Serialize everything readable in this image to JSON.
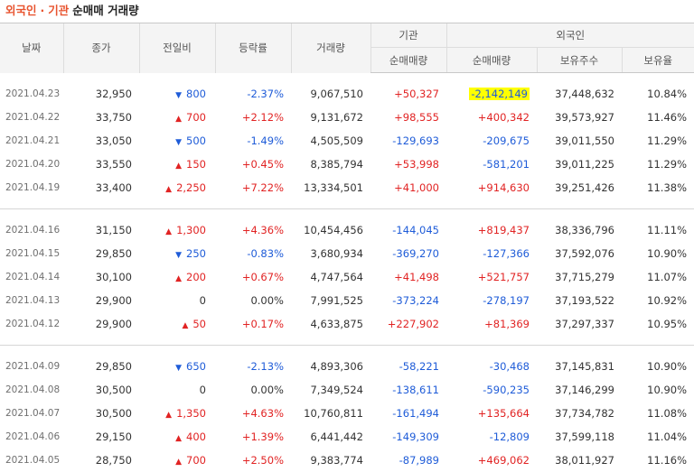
{
  "title": {
    "foreign": "외국인",
    "dot": "·",
    "institution": "기관",
    "rest": "순매매 거래량"
  },
  "headers": {
    "date": "날짜",
    "close": "종가",
    "change": "전일비",
    "rate": "등락률",
    "volume": "거래량",
    "institution_group": "기관",
    "institution_net": "순매매량",
    "foreign_group": "외국인",
    "foreign_net": "순매매량",
    "foreign_shares": "보유주수",
    "foreign_ratio": "보유율"
  },
  "colors": {
    "up": "#e12323",
    "down": "#1f5cd8",
    "title_accent": "#e8542f",
    "highlight": "#ffff00"
  },
  "groups": [
    {
      "rows": [
        {
          "date": "2021.04.23",
          "close": "32,950",
          "dir": "down",
          "change": "800",
          "rate": "-2.37%",
          "volume": "9,067,510",
          "inst_net": "+50,327",
          "foreign_net": "-2,142,149",
          "foreign_highlight": true,
          "shares": "37,448,632",
          "ratio": "10.84%"
        },
        {
          "date": "2021.04.22",
          "close": "33,750",
          "dir": "up",
          "change": "700",
          "rate": "+2.12%",
          "volume": "9,131,672",
          "inst_net": "+98,555",
          "foreign_net": "+400,342",
          "shares": "39,573,927",
          "ratio": "11.46%"
        },
        {
          "date": "2021.04.21",
          "close": "33,050",
          "dir": "down",
          "change": "500",
          "rate": "-1.49%",
          "volume": "4,505,509",
          "inst_net": "-129,693",
          "foreign_net": "-209,675",
          "shares": "39,011,550",
          "ratio": "11.29%"
        },
        {
          "date": "2021.04.20",
          "close": "33,550",
          "dir": "up",
          "change": "150",
          "rate": "+0.45%",
          "volume": "8,385,794",
          "inst_net": "+53,998",
          "foreign_net": "-581,201",
          "shares": "39,011,225",
          "ratio": "11.29%"
        },
        {
          "date": "2021.04.19",
          "close": "33,400",
          "dir": "up",
          "change": "2,250",
          "rate": "+7.22%",
          "volume": "13,334,501",
          "inst_net": "+41,000",
          "foreign_net": "+914,630",
          "shares": "39,251,426",
          "ratio": "11.38%"
        }
      ]
    },
    {
      "rows": [
        {
          "date": "2021.04.16",
          "close": "31,150",
          "dir": "up",
          "change": "1,300",
          "rate": "+4.36%",
          "volume": "10,454,456",
          "inst_net": "-144,045",
          "foreign_net": "+819,437",
          "shares": "38,336,796",
          "ratio": "11.11%"
        },
        {
          "date": "2021.04.15",
          "close": "29,850",
          "dir": "down",
          "change": "250",
          "rate": "-0.83%",
          "volume": "3,680,934",
          "inst_net": "-369,270",
          "foreign_net": "-127,366",
          "shares": "37,592,076",
          "ratio": "10.90%"
        },
        {
          "date": "2021.04.14",
          "close": "30,100",
          "dir": "up",
          "change": "200",
          "rate": "+0.67%",
          "volume": "4,747,564",
          "inst_net": "+41,498",
          "foreign_net": "+521,757",
          "shares": "37,715,279",
          "ratio": "11.07%"
        },
        {
          "date": "2021.04.13",
          "close": "29,900",
          "dir": "flat",
          "change": "0",
          "rate": "0.00%",
          "volume": "7,991,525",
          "inst_net": "-373,224",
          "foreign_net": "-278,197",
          "shares": "37,193,522",
          "ratio": "10.92%"
        },
        {
          "date": "2021.04.12",
          "close": "29,900",
          "dir": "up",
          "change": "50",
          "rate": "+0.17%",
          "volume": "4,633,875",
          "inst_net": "+227,902",
          "foreign_net": "+81,369",
          "shares": "37,297,337",
          "ratio": "10.95%"
        }
      ]
    },
    {
      "rows": [
        {
          "date": "2021.04.09",
          "close": "29,850",
          "dir": "down",
          "change": "650",
          "rate": "-2.13%",
          "volume": "4,893,306",
          "inst_net": "-58,221",
          "foreign_net": "-30,468",
          "shares": "37,145,831",
          "ratio": "10.90%"
        },
        {
          "date": "2021.04.08",
          "close": "30,500",
          "dir": "flat",
          "change": "0",
          "rate": "0.00%",
          "volume": "7,349,524",
          "inst_net": "-138,611",
          "foreign_net": "-590,235",
          "shares": "37,146,299",
          "ratio": "10.90%"
        },
        {
          "date": "2021.04.07",
          "close": "30,500",
          "dir": "up",
          "change": "1,350",
          "rate": "+4.63%",
          "volume": "10,760,811",
          "inst_net": "-161,494",
          "foreign_net": "+135,664",
          "shares": "37,734,782",
          "ratio": "11.08%"
        },
        {
          "date": "2021.04.06",
          "close": "29,150",
          "dir": "up",
          "change": "400",
          "rate": "+1.39%",
          "volume": "6,441,442",
          "inst_net": "-149,309",
          "foreign_net": "-12,809",
          "shares": "37,599,118",
          "ratio": "11.04%"
        },
        {
          "date": "2021.04.05",
          "close": "28,750",
          "dir": "up",
          "change": "700",
          "rate": "+2.50%",
          "volume": "9,383,774",
          "inst_net": "-87,989",
          "foreign_net": "+469,062",
          "shares": "38,011,927",
          "ratio": "11.16%"
        }
      ]
    }
  ]
}
